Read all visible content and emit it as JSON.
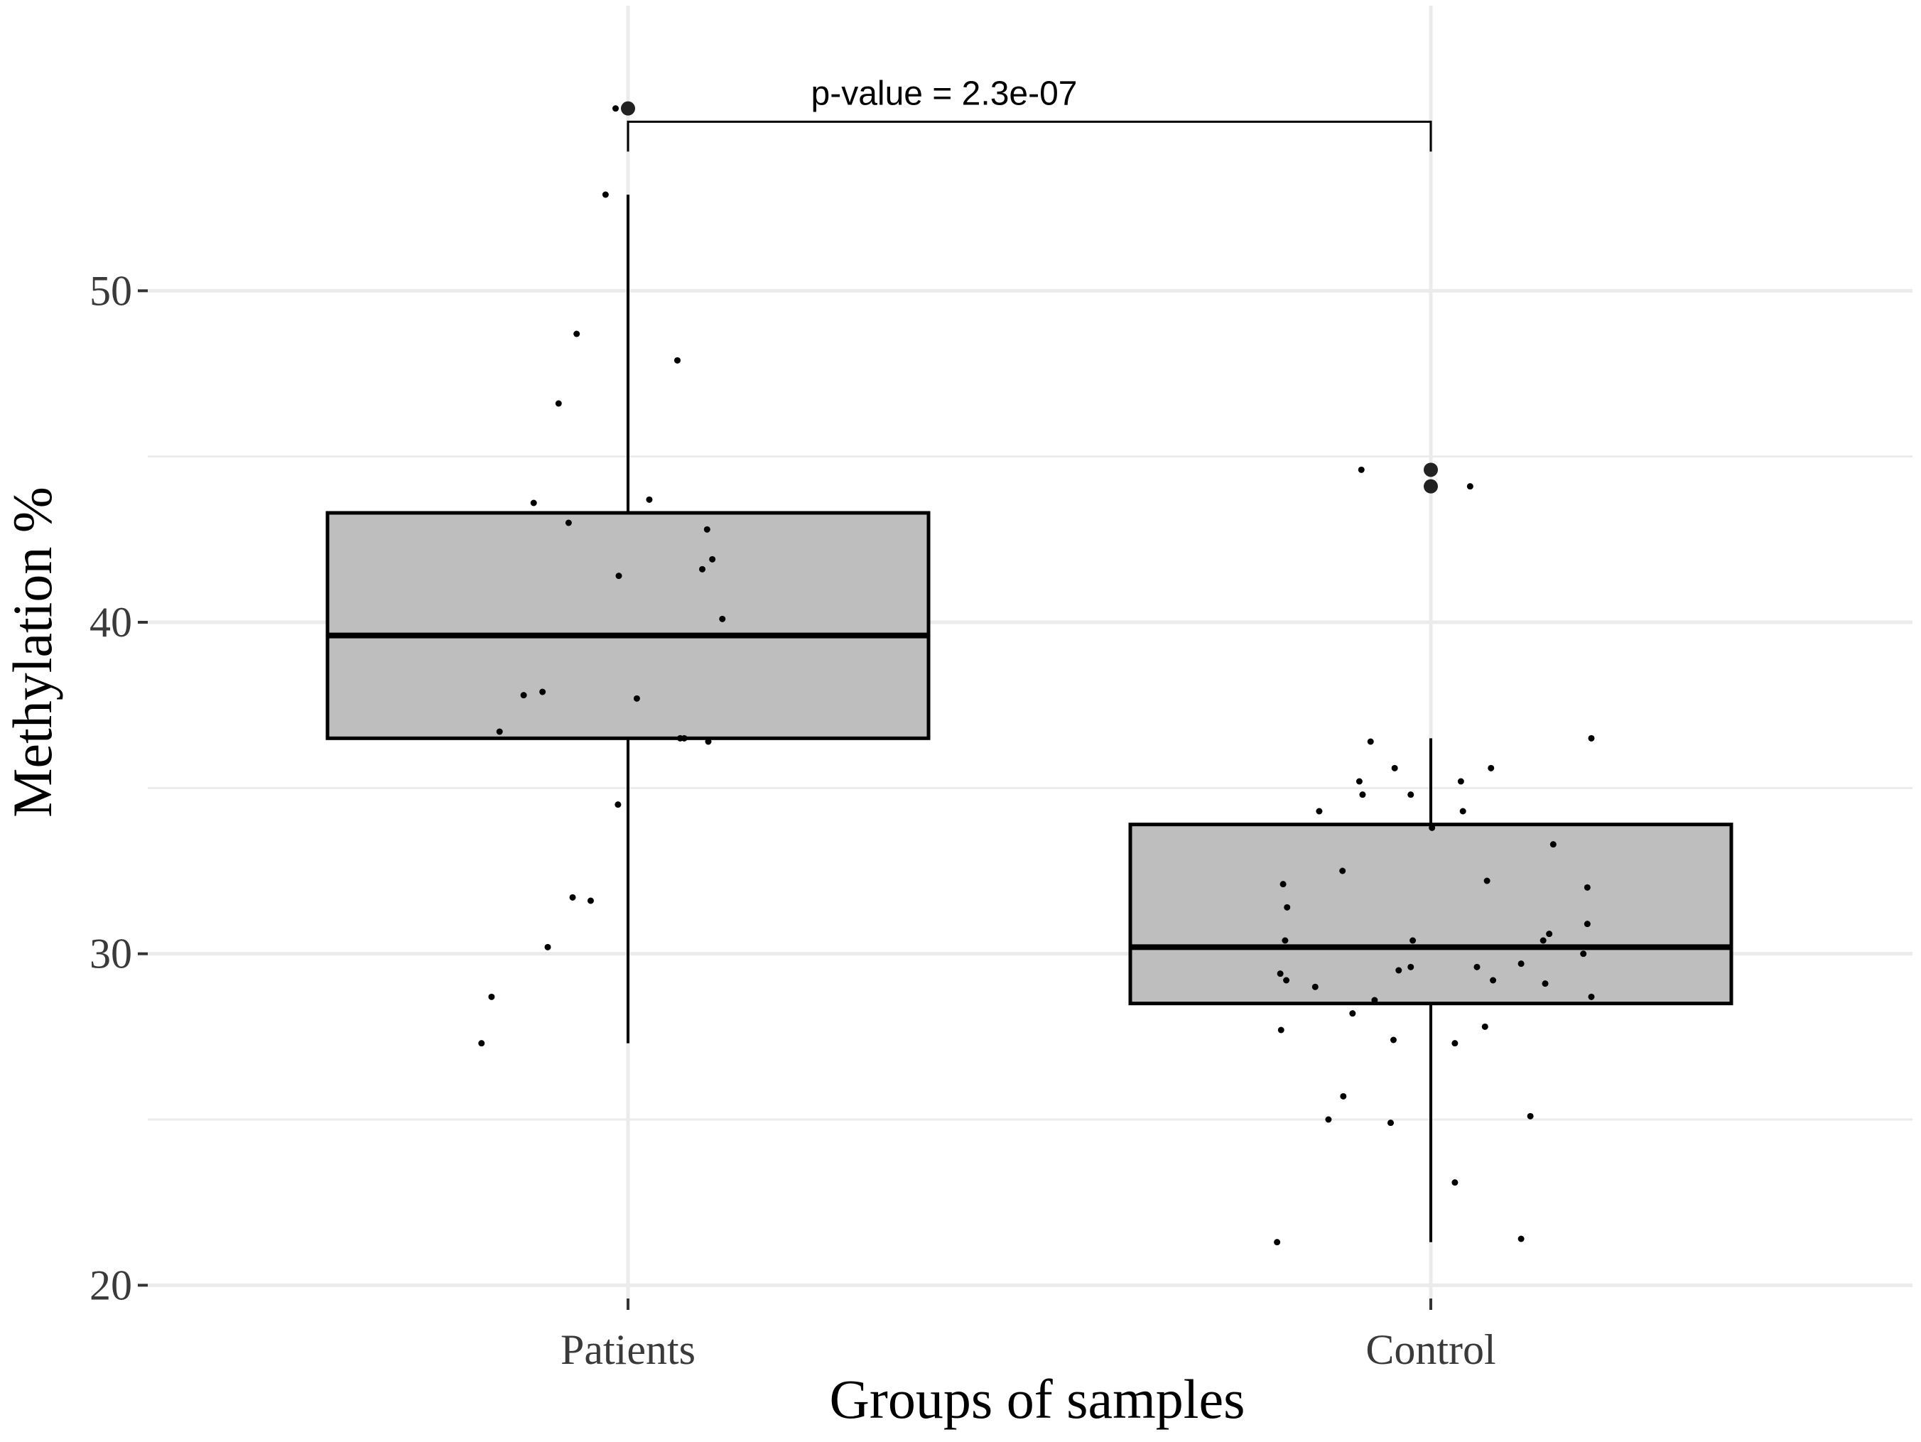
{
  "chart_data": {
    "type": "boxplot",
    "title": "",
    "xlabel": "Groups of samples",
    "ylabel": "Methylation %",
    "ylim": [
      19.6,
      58.6
    ],
    "yticks": [
      20,
      30,
      40,
      50
    ],
    "ytick_labels": [
      "20",
      "30",
      "40",
      "50"
    ],
    "grid": true,
    "colors": {
      "box_fill": "#bebebe",
      "line": "#000000",
      "grid": "#ebebeb",
      "background": "#ffffff"
    },
    "annotation": {
      "text": "p-value = 2.3e-07",
      "between": [
        "Patients",
        "Control"
      ],
      "bracket_y": 55.1,
      "bracket_drop_to": 54.2
    },
    "categories": [
      "Patients",
      "Control"
    ],
    "boxes": [
      {
        "name": "Patients",
        "q1": 36.5,
        "median": 39.6,
        "q3": 43.3,
        "whisker_low": 27.3,
        "whisker_high": 52.9,
        "outliers": [
          55.5
        ],
        "points": [
          {
            "dx": -0.365,
            "y": 27.3
          },
          {
            "dx": -0.34,
            "y": 28.7
          },
          {
            "dx": -0.2,
            "y": 30.2
          },
          {
            "dx": -0.138,
            "y": 31.7
          },
          {
            "dx": -0.093,
            "y": 31.6
          },
          {
            "dx": -0.025,
            "y": 34.5
          },
          {
            "dx": -0.32,
            "y": 36.7
          },
          {
            "dx": 0.13,
            "y": 36.5
          },
          {
            "dx": 0.14,
            "y": 36.5
          },
          {
            "dx": 0.2,
            "y": 36.4
          },
          {
            "dx": -0.26,
            "y": 37.8
          },
          {
            "dx": -0.213,
            "y": 37.9
          },
          {
            "dx": 0.022,
            "y": 37.7
          },
          {
            "dx": 0.235,
            "y": 40.1
          },
          {
            "dx": -0.023,
            "y": 41.4
          },
          {
            "dx": 0.185,
            "y": 41.6
          },
          {
            "dx": 0.21,
            "y": 41.9
          },
          {
            "dx": 0.197,
            "y": 42.8
          },
          {
            "dx": -0.148,
            "y": 43.0
          },
          {
            "dx": -0.235,
            "y": 43.6
          },
          {
            "dx": 0.053,
            "y": 43.7
          },
          {
            "dx": -0.173,
            "y": 46.6
          },
          {
            "dx": 0.123,
            "y": 47.9
          },
          {
            "dx": -0.128,
            "y": 48.7
          },
          {
            "dx": -0.056,
            "y": 52.9
          },
          {
            "dx": -0.031,
            "y": 55.5
          }
        ]
      },
      {
        "name": "Control",
        "q1": 28.5,
        "median": 30.2,
        "q3": 33.9,
        "whisker_low": 21.3,
        "whisker_high": 36.5,
        "outliers": [
          44.6,
          44.1
        ],
        "points": [
          {
            "dx": -0.383,
            "y": 21.3
          },
          {
            "dx": 0.225,
            "y": 21.4
          },
          {
            "dx": 0.06,
            "y": 23.1
          },
          {
            "dx": -0.1,
            "y": 24.9
          },
          {
            "dx": -0.255,
            "y": 25.0
          },
          {
            "dx": 0.248,
            "y": 25.1
          },
          {
            "dx": -0.218,
            "y": 25.7
          },
          {
            "dx": -0.093,
            "y": 27.4
          },
          {
            "dx": 0.06,
            "y": 27.3
          },
          {
            "dx": -0.373,
            "y": 27.7
          },
          {
            "dx": 0.135,
            "y": 27.8
          },
          {
            "dx": -0.195,
            "y": 28.2
          },
          {
            "dx": -0.14,
            "y": 28.6
          },
          {
            "dx": 0.4,
            "y": 28.7
          },
          {
            "dx": -0.375,
            "y": 29.4
          },
          {
            "dx": -0.36,
            "y": 29.2
          },
          {
            "dx": -0.288,
            "y": 29.0
          },
          {
            "dx": -0.08,
            "y": 29.5
          },
          {
            "dx": -0.05,
            "y": 29.6
          },
          {
            "dx": 0.115,
            "y": 29.6
          },
          {
            "dx": 0.155,
            "y": 29.2
          },
          {
            "dx": 0.225,
            "y": 29.7
          },
          {
            "dx": 0.285,
            "y": 29.1
          },
          {
            "dx": 0.38,
            "y": 30.0
          },
          {
            "dx": -0.363,
            "y": 30.4
          },
          {
            "dx": -0.045,
            "y": 30.4
          },
          {
            "dx": 0.28,
            "y": 30.4
          },
          {
            "dx": 0.295,
            "y": 30.6
          },
          {
            "dx": 0.39,
            "y": 30.9
          },
          {
            "dx": -0.358,
            "y": 31.4
          },
          {
            "dx": -0.368,
            "y": 32.1
          },
          {
            "dx": -0.22,
            "y": 32.5
          },
          {
            "dx": 0.14,
            "y": 32.2
          },
          {
            "dx": 0.39,
            "y": 32.0
          },
          {
            "dx": 0.305,
            "y": 33.3
          },
          {
            "dx": 0.003,
            "y": 33.8
          },
          {
            "dx": -0.278,
            "y": 34.3
          },
          {
            "dx": -0.17,
            "y": 34.8
          },
          {
            "dx": -0.05,
            "y": 34.8
          },
          {
            "dx": 0.08,
            "y": 34.3
          },
          {
            "dx": -0.178,
            "y": 35.2
          },
          {
            "dx": -0.09,
            "y": 35.6
          },
          {
            "dx": 0.075,
            "y": 35.2
          },
          {
            "dx": 0.15,
            "y": 35.6
          },
          {
            "dx": -0.15,
            "y": 36.4
          },
          {
            "dx": 0.4,
            "y": 36.5
          },
          {
            "dx": -0.173,
            "y": 44.6
          },
          {
            "dx": 0.098,
            "y": 44.1
          }
        ]
      }
    ]
  }
}
